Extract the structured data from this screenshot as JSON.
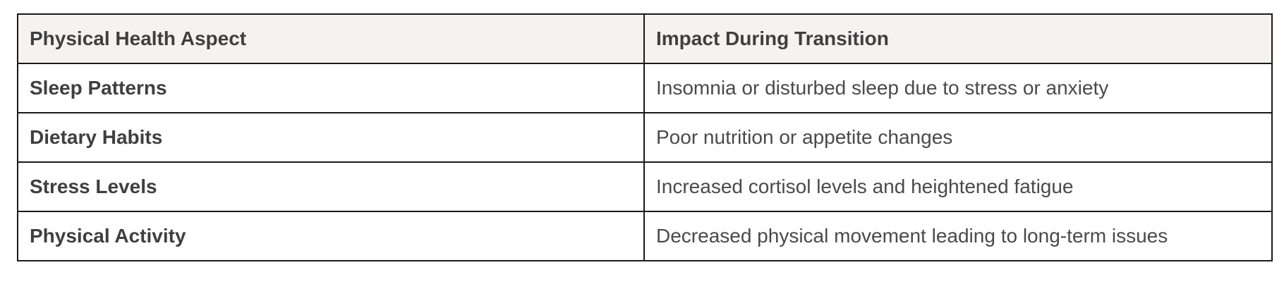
{
  "table": {
    "headers": [
      "Physical Health Aspect",
      "Impact During Transition"
    ],
    "rows": [
      {
        "aspect": "Sleep Patterns",
        "impact": "Insomnia or disturbed sleep due to stress or anxiety"
      },
      {
        "aspect": "Dietary Habits",
        "impact": "Poor nutrition or appetite changes"
      },
      {
        "aspect": "Stress Levels",
        "impact": "Increased cortisol levels and heightened fatigue"
      },
      {
        "aspect": "Physical Activity",
        "impact": "Decreased physical movement leading to long-term issues"
      }
    ]
  },
  "colors": {
    "header_background": "#f4f3f1",
    "border": "#1a1a1a",
    "text": "#4a4a4a"
  }
}
